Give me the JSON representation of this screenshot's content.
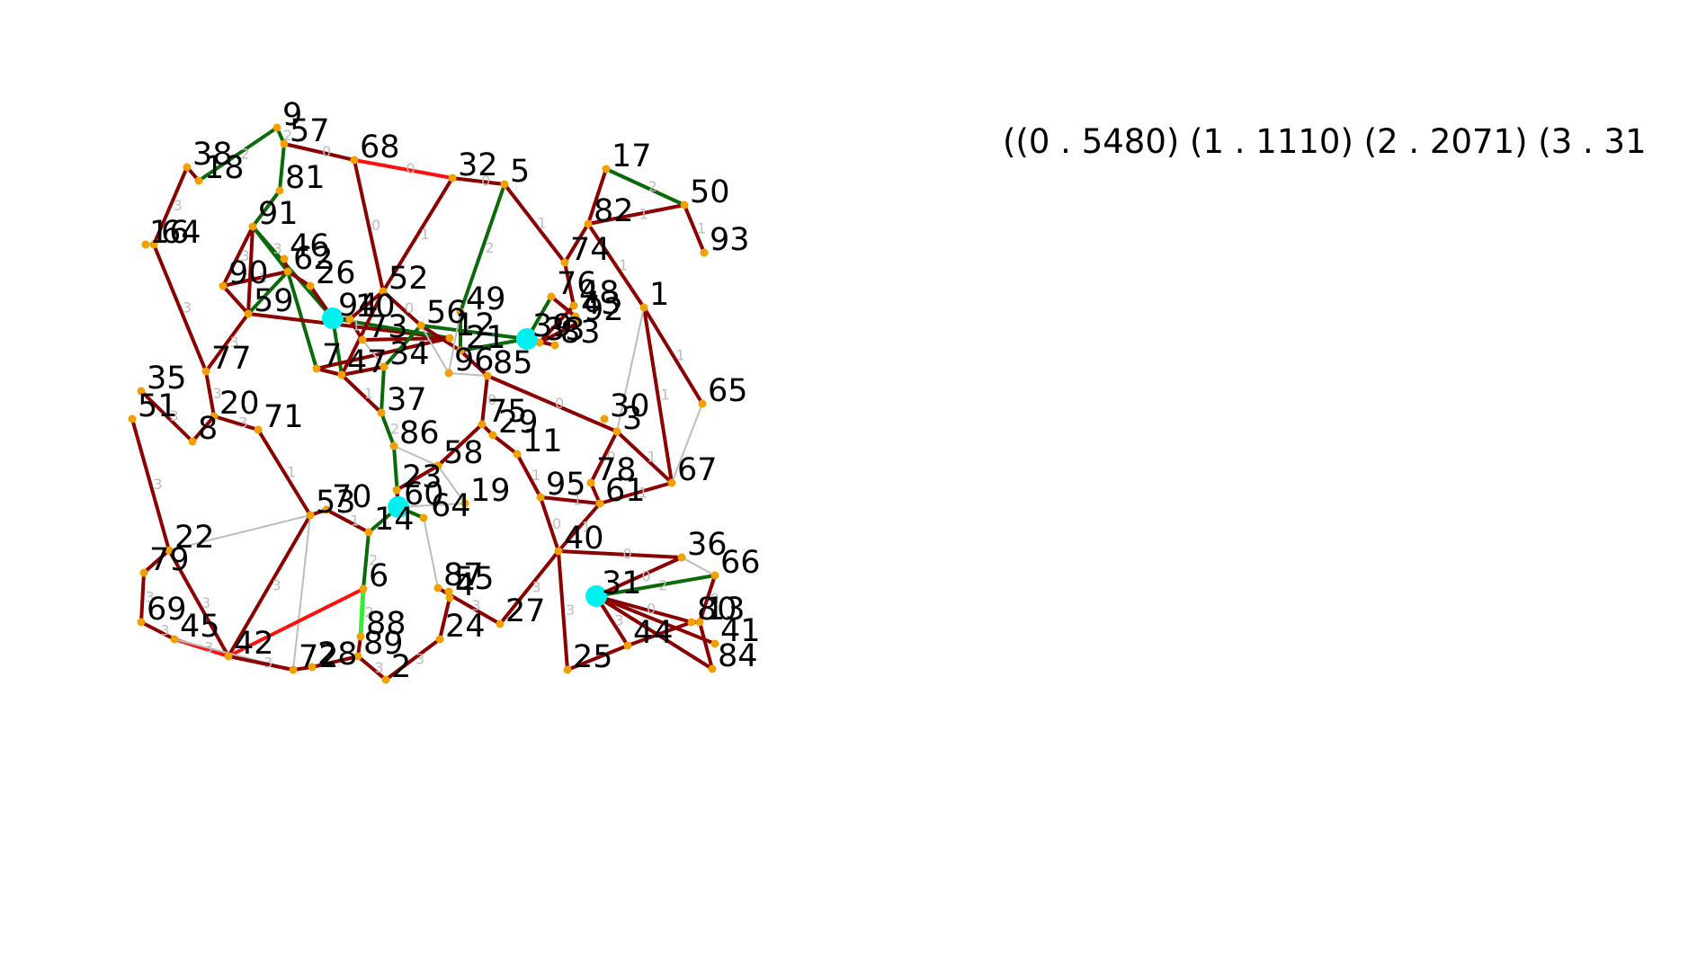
{
  "summary_text": "((0 . 5480) (1 . 1110) (2 . 2071) (3 . 31",
  "colors": {
    "node": "#f2a000",
    "hub": "#00f0f0",
    "edge_dark_red": "#8b0000",
    "edge_red": "#ff1010",
    "edge_dark_green": "#0a6a0a",
    "edge_light_green": "#33ee33",
    "edge_gray": "#bdbdbd",
    "edge_label": "#bdbdbd",
    "label_text": "#000000"
  },
  "hubs": [
    "94",
    "39",
    "60",
    "31"
  ],
  "nodes": [
    {
      "id": "9"
    },
    {
      "id": "57"
    },
    {
      "id": "68"
    },
    {
      "id": "32"
    },
    {
      "id": "5"
    },
    {
      "id": "38"
    },
    {
      "id": "18"
    },
    {
      "id": "81"
    },
    {
      "id": "17"
    },
    {
      "id": "50"
    },
    {
      "id": "82"
    },
    {
      "id": "93"
    },
    {
      "id": "91"
    },
    {
      "id": "16"
    },
    {
      "id": "64"
    },
    {
      "id": "46"
    },
    {
      "id": "62"
    },
    {
      "id": "26"
    },
    {
      "id": "74"
    },
    {
      "id": "52"
    },
    {
      "id": "49"
    },
    {
      "id": "1"
    },
    {
      "id": "76"
    },
    {
      "id": "48"
    },
    {
      "id": "43"
    },
    {
      "id": "92"
    },
    {
      "id": "90"
    },
    {
      "id": "59"
    },
    {
      "id": "94"
    },
    {
      "id": "10"
    },
    {
      "id": "73"
    },
    {
      "id": "56"
    },
    {
      "id": "12"
    },
    {
      "id": "21"
    },
    {
      "id": "39"
    },
    {
      "id": "33"
    },
    {
      "id": "83"
    },
    {
      "id": "11"
    },
    {
      "id": "47"
    },
    {
      "id": "34"
    },
    {
      "id": "96"
    },
    {
      "id": "85"
    },
    {
      "id": "77"
    },
    {
      "id": "35"
    },
    {
      "id": "51"
    },
    {
      "id": "20"
    },
    {
      "id": "8"
    },
    {
      "id": "71"
    },
    {
      "id": "37"
    },
    {
      "id": "65"
    },
    {
      "id": "30"
    },
    {
      "id": "3"
    },
    {
      "id": "75"
    },
    {
      "id": "29"
    },
    {
      "id": "86"
    },
    {
      "id": "58"
    },
    {
      "id": "67"
    },
    {
      "id": "78"
    },
    {
      "id": "95"
    },
    {
      "id": "61"
    },
    {
      "id": "23"
    },
    {
      "id": "60"
    },
    {
      "id": "19"
    },
    {
      "id": "53"
    },
    {
      "id": "70"
    },
    {
      "id": "14"
    },
    {
      "id": "22"
    },
    {
      "id": "40"
    },
    {
      "id": "36"
    },
    {
      "id": "66"
    },
    {
      "id": "79"
    },
    {
      "id": "6"
    },
    {
      "id": "87"
    },
    {
      "id": "55"
    },
    {
      "id": "4"
    },
    {
      "id": "31"
    },
    {
      "id": "69"
    },
    {
      "id": "45"
    },
    {
      "id": "88"
    },
    {
      "id": "27"
    },
    {
      "id": "13"
    },
    {
      "id": "80"
    },
    {
      "id": "24"
    },
    {
      "id": "42"
    },
    {
      "id": "89"
    },
    {
      "id": "44"
    },
    {
      "id": "41"
    },
    {
      "id": "72"
    },
    {
      "id": "28"
    },
    {
      "id": "2"
    },
    {
      "id": "25"
    },
    {
      "id": "84"
    },
    {
      "id": "7"
    }
  ],
  "edges": [
    {
      "from": "9",
      "to": "57",
      "color": "green",
      "label": "2"
    },
    {
      "from": "9",
      "to": "18",
      "color": "green",
      "label": "2"
    },
    {
      "from": "57",
      "to": "68",
      "color": "darkred",
      "label": "0"
    },
    {
      "from": "57",
      "to": "81",
      "color": "green",
      "label": ""
    },
    {
      "from": "68",
      "to": "32",
      "color": "red",
      "label": "0"
    },
    {
      "from": "68",
      "to": "52",
      "color": "darkred",
      "label": "0"
    },
    {
      "from": "32",
      "to": "5",
      "color": "darkred",
      "label": "0"
    },
    {
      "from": "32",
      "to": "52",
      "color": "darkred",
      "label": "1"
    },
    {
      "from": "5",
      "to": "49",
      "color": "green",
      "label": "2"
    },
    {
      "from": "5",
      "to": "74",
      "color": "darkred",
      "label": "1"
    },
    {
      "from": "38",
      "to": "18",
      "color": "darkred",
      "label": ""
    },
    {
      "from": "38",
      "to": "64",
      "color": "darkred",
      "label": "3"
    },
    {
      "from": "81",
      "to": "91",
      "color": "green",
      "label": ""
    },
    {
      "from": "17",
      "to": "50",
      "color": "green",
      "label": "2"
    },
    {
      "from": "17",
      "to": "82",
      "color": "darkred",
      "label": ""
    },
    {
      "from": "82",
      "to": "50",
      "color": "darkred",
      "label": "1"
    },
    {
      "from": "50",
      "to": "93",
      "color": "darkred",
      "label": "1"
    },
    {
      "from": "82",
      "to": "74",
      "color": "darkred",
      "label": ""
    },
    {
      "from": "82",
      "to": "1",
      "color": "darkred",
      "label": "1"
    },
    {
      "from": "64",
      "to": "77",
      "color": "darkred",
      "label": "3"
    },
    {
      "from": "91",
      "to": "90",
      "color": "darkred",
      "label": "3"
    },
    {
      "from": "91",
      "to": "59",
      "color": "darkred",
      "label": ""
    },
    {
      "from": "91",
      "to": "62",
      "color": "green",
      "label": "3"
    },
    {
      "from": "91",
      "to": "94",
      "color": "green",
      "label": ""
    },
    {
      "from": "90",
      "to": "62",
      "color": "darkred",
      "label": "3"
    },
    {
      "from": "90",
      "to": "59",
      "color": "darkred",
      "label": ""
    },
    {
      "from": "46",
      "to": "62",
      "color": "darkred",
      "label": ""
    },
    {
      "from": "62",
      "to": "26",
      "color": "darkred",
      "label": ""
    },
    {
      "from": "62",
      "to": "59",
      "color": "green",
      "label": ""
    },
    {
      "from": "62",
      "to": "7",
      "color": "green",
      "label": ""
    },
    {
      "from": "26",
      "to": "94",
      "color": "darkred",
      "label": ""
    },
    {
      "from": "59",
      "to": "12",
      "color": "darkred",
      "label": "1"
    },
    {
      "from": "59",
      "to": "77",
      "color": "darkred",
      "label": "3"
    },
    {
      "from": "94",
      "to": "10",
      "color": "darkred",
      "label": ""
    },
    {
      "from": "94",
      "to": "12",
      "color": "green",
      "label": ""
    },
    {
      "from": "94",
      "to": "47",
      "color": "green",
      "label": ""
    },
    {
      "from": "10",
      "to": "73",
      "color": "darkred",
      "label": ""
    },
    {
      "from": "52",
      "to": "10",
      "color": "darkred",
      "label": ""
    },
    {
      "from": "52",
      "to": "56",
      "color": "darkred",
      "label": "0"
    },
    {
      "from": "52",
      "to": "47",
      "color": "darkred",
      "label": ""
    },
    {
      "from": "12",
      "to": "73",
      "color": "darkred",
      "label": ""
    },
    {
      "from": "12",
      "to": "7",
      "color": "darkred",
      "label": ""
    },
    {
      "from": "7",
      "to": "47",
      "color": "darkred",
      "label": ""
    },
    {
      "from": "47",
      "to": "34",
      "color": "darkred",
      "label": ""
    },
    {
      "from": "47",
      "to": "37",
      "color": "darkred",
      "label": "1"
    },
    {
      "from": "34",
      "to": "37",
      "color": "green",
      "label": ""
    },
    {
      "from": "34",
      "to": "56",
      "color": "green",
      "label": ""
    },
    {
      "from": "34",
      "to": "73",
      "color": "gray",
      "label": ""
    },
    {
      "from": "56",
      "to": "21",
      "color": "darkred",
      "label": ""
    },
    {
      "from": "56",
      "to": "39",
      "color": "green",
      "label": ""
    },
    {
      "from": "56",
      "to": "96",
      "color": "gray",
      "label": ""
    },
    {
      "from": "49",
      "to": "21",
      "color": "green",
      "label": ""
    },
    {
      "from": "49",
      "to": "96",
      "color": "gray",
      "label": ""
    },
    {
      "from": "21",
      "to": "39",
      "color": "green",
      "label": ""
    },
    {
      "from": "21",
      "to": "85",
      "color": "darkred",
      "label": ""
    },
    {
      "from": "39",
      "to": "33",
      "color": "darkred",
      "label": ""
    },
    {
      "from": "39",
      "to": "83",
      "color": "darkred",
      "label": ""
    },
    {
      "from": "74",
      "to": "48",
      "color": "darkred",
      "label": ""
    },
    {
      "from": "76",
      "to": "39",
      "color": "green",
      "label": ""
    },
    {
      "from": "76",
      "to": "92",
      "color": "gray",
      "label": ""
    },
    {
      "from": "76",
      "to": "43",
      "color": "darkred",
      "label": ""
    },
    {
      "from": "48",
      "to": "33",
      "color": "darkred",
      "label": ""
    },
    {
      "from": "33",
      "to": "92",
      "color": "darkred",
      "label": ""
    },
    {
      "from": "1",
      "to": "65",
      "color": "darkred",
      "label": "1"
    },
    {
      "from": "1",
      "to": "67",
      "color": "darkred",
      "label": "1"
    },
    {
      "from": "1",
      "to": "3",
      "color": "gray",
      "label": ""
    },
    {
      "from": "96",
      "to": "85",
      "color": "gray",
      "label": ""
    },
    {
      "from": "85",
      "to": "3",
      "color": "darkred",
      "label": "0"
    },
    {
      "from": "85",
      "to": "75",
      "color": "darkred",
      "label": "0"
    },
    {
      "from": "77",
      "to": "20",
      "color": "darkred",
      "label": "3"
    },
    {
      "from": "35",
      "to": "8",
      "color": "darkred",
      "label": "3"
    },
    {
      "from": "51",
      "to": "22",
      "color": "darkred",
      "label": "3"
    },
    {
      "from": "20",
      "to": "8",
      "color": "darkred",
      "label": ""
    },
    {
      "from": "20",
      "to": "71",
      "color": "darkred",
      "label": "3"
    },
    {
      "from": "71",
      "to": "53",
      "color": "darkred",
      "label": "1"
    },
    {
      "from": "37",
      "to": "86",
      "color": "green",
      "label": "2"
    },
    {
      "from": "86",
      "to": "60",
      "color": "green",
      "label": ""
    },
    {
      "from": "86",
      "to": "58",
      "color": "gray",
      "label": ""
    },
    {
      "from": "65",
      "to": "67",
      "color": "gray",
      "label": ""
    },
    {
      "from": "3",
      "to": "78",
      "color": "darkred",
      "label": "0"
    },
    {
      "from": "3",
      "to": "67",
      "color": "darkred",
      "label": "1"
    },
    {
      "from": "75",
      "to": "29",
      "color": "darkred",
      "label": ""
    },
    {
      "from": "29",
      "to": "11",
      "color": "darkred",
      "label": ""
    },
    {
      "from": "75",
      "to": "58",
      "color": "darkred",
      "label": ""
    },
    {
      "from": "58",
      "to": "23",
      "color": "darkred",
      "label": ""
    },
    {
      "from": "58",
      "to": "19",
      "color": "gray",
      "label": ""
    },
    {
      "from": "11",
      "to": "95",
      "color": "darkred",
      "label": "1"
    },
    {
      "from": "95",
      "to": "61",
      "color": "darkred",
      "label": "1"
    },
    {
      "from": "95",
      "to": "40",
      "color": "darkred",
      "label": "0"
    },
    {
      "from": "78",
      "to": "61",
      "color": "darkred",
      "label": ""
    },
    {
      "from": "61",
      "to": "67",
      "color": "darkred",
      "label": "1"
    },
    {
      "from": "61",
      "to": "40",
      "color": "darkred",
      "label": "1"
    },
    {
      "from": "23",
      "to": "60",
      "color": "darkred",
      "label": ""
    },
    {
      "from": "60",
      "to": "64b",
      "color": "green",
      "label": ""
    },
    {
      "from": "60",
      "to": "14",
      "color": "green",
      "label": ""
    },
    {
      "from": "60",
      "to": "19",
      "color": "gray",
      "label": ""
    },
    {
      "from": "53",
      "to": "70",
      "color": "darkred",
      "label": ""
    },
    {
      "from": "70",
      "to": "14",
      "color": "darkred",
      "label": "1"
    },
    {
      "from": "53",
      "to": "22",
      "color": "gray",
      "label": ""
    },
    {
      "from": "53",
      "to": "42",
      "color": "darkred",
      "label": "3"
    },
    {
      "from": "53",
      "to": "72",
      "color": "gray",
      "label": ""
    },
    {
      "from": "14",
      "to": "6",
      "color": "green",
      "label": "2"
    },
    {
      "from": "6",
      "to": "88",
      "color": "lightgreen",
      "label": "2"
    },
    {
      "from": "6",
      "to": "42",
      "color": "red",
      "label": ""
    },
    {
      "from": "22",
      "to": "79",
      "color": "darkred",
      "label": ""
    },
    {
      "from": "22",
      "to": "42",
      "color": "darkred",
      "label": "3"
    },
    {
      "from": "79",
      "to": "69",
      "color": "darkred",
      "label": "3"
    },
    {
      "from": "69",
      "to": "45",
      "color": "darkred",
      "label": "3"
    },
    {
      "from": "45",
      "to": "42",
      "color": "red",
      "label": "3"
    },
    {
      "from": "45",
      "to": "72",
      "color": "gray",
      "label": ""
    },
    {
      "from": "42",
      "to": "72",
      "color": "darkred",
      "label": "3"
    },
    {
      "from": "72",
      "to": "28",
      "color": "darkred",
      "label": ""
    },
    {
      "from": "28",
      "to": "89",
      "color": "darkred",
      "label": ""
    },
    {
      "from": "88",
      "to": "89",
      "color": "darkred",
      "label": ""
    },
    {
      "from": "89",
      "to": "2",
      "color": "darkred",
      "label": "3"
    },
    {
      "from": "2",
      "to": "24",
      "color": "darkred",
      "label": "3"
    },
    {
      "from": "24",
      "to": "4",
      "color": "darkred",
      "label": ""
    },
    {
      "from": "4",
      "to": "55",
      "color": "darkred",
      "label": ""
    },
    {
      "from": "87",
      "to": "27",
      "color": "darkred",
      "label": "3"
    },
    {
      "from": "64b",
      "to": "87",
      "color": "gray",
      "label": ""
    },
    {
      "from": "27",
      "to": "40",
      "color": "darkred",
      "label": "3"
    },
    {
      "from": "40",
      "to": "36",
      "color": "darkred",
      "label": "0"
    },
    {
      "from": "40",
      "to": "25",
      "color": "darkred",
      "label": "3"
    },
    {
      "from": "36",
      "to": "31",
      "color": "darkred",
      "label": "0"
    },
    {
      "from": "36",
      "to": "66",
      "color": "gray",
      "label": ""
    },
    {
      "from": "31",
      "to": "66",
      "color": "green",
      "label": "2"
    },
    {
      "from": "31",
      "to": "80",
      "color": "darkred",
      "label": "0"
    },
    {
      "from": "31",
      "to": "44",
      "color": "darkred",
      "label": "3"
    },
    {
      "from": "31",
      "to": "41",
      "color": "darkred",
      "label": ""
    },
    {
      "from": "31",
      "to": "84",
      "color": "darkred",
      "label": ""
    },
    {
      "from": "66",
      "to": "13",
      "color": "darkred",
      "label": "0"
    },
    {
      "from": "13",
      "to": "84",
      "color": "darkred",
      "label": ""
    },
    {
      "from": "80",
      "to": "13",
      "color": "darkred",
      "label": ""
    },
    {
      "from": "44",
      "to": "25",
      "color": "darkred",
      "label": ""
    },
    {
      "from": "44",
      "to": "80",
      "color": "darkred",
      "label": ""
    }
  ]
}
